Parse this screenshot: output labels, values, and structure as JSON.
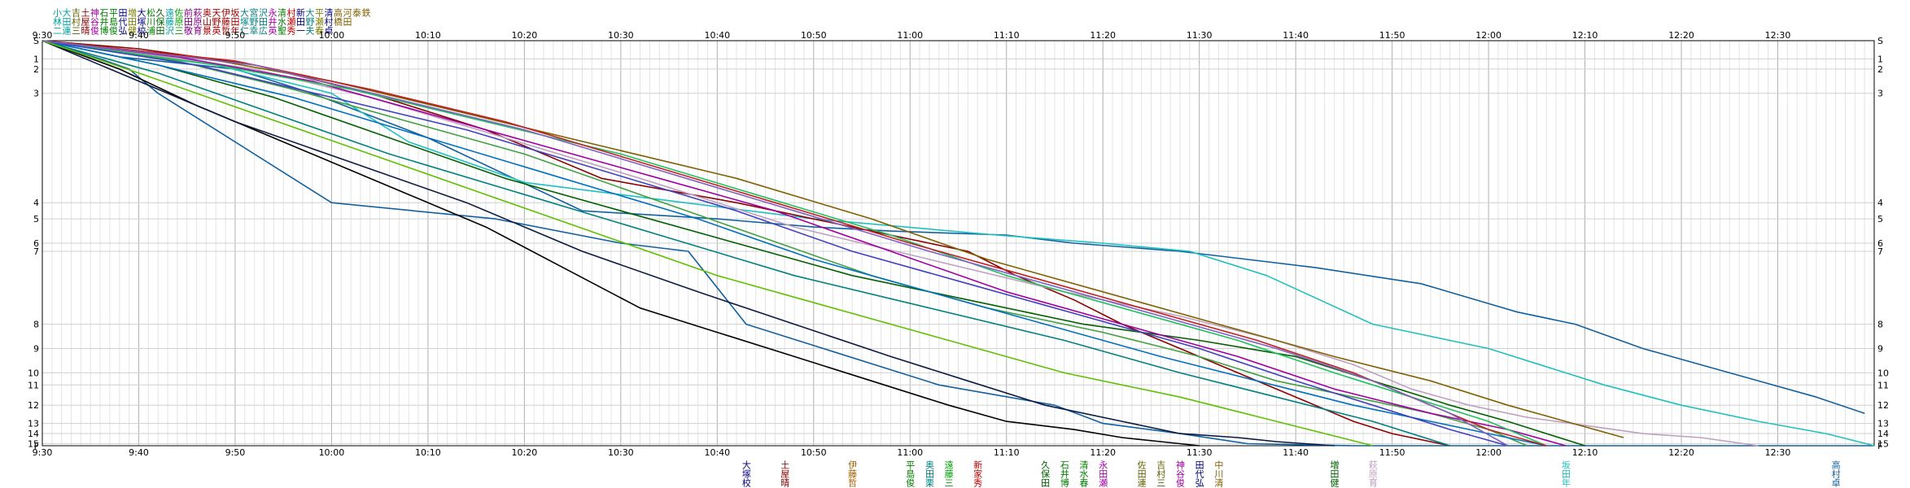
{
  "chart_data": {
    "type": "line",
    "title": "",
    "xlabel": "",
    "ylabel": "",
    "grid": true,
    "legend": "top-left",
    "x_ticks": [
      "9:30",
      "9:40",
      "9:50",
      "10:00",
      "10:10",
      "10:20",
      "10:30",
      "10:40",
      "10:50",
      "11:00",
      "11:10",
      "11:20",
      "11:30",
      "11:40",
      "11:50",
      "12:00",
      "12:10",
      "12:20",
      "12:30"
    ],
    "xlim_min": [
      0,
      190
    ],
    "y_ticks": [
      "S",
      "1",
      "2",
      "3",
      "4",
      "5",
      "6",
      "7",
      "8",
      "9",
      "10",
      "11",
      "12",
      "13",
      "14",
      "15",
      "F"
    ],
    "ylim": [
      0,
      100
    ],
    "y_tick_values": [
      0,
      4.5,
      7,
      13,
      40,
      44,
      50,
      52,
      70,
      76,
      82,
      85,
      90,
      94.5,
      97,
      99.5,
      100
    ],
    "legend_entries": [
      {
        "name": "小林二",
        "color": "#00a0a0"
      },
      {
        "name": "大田連",
        "color": "#00a0a0"
      },
      {
        "name": "吉村三",
        "color": "#606000"
      },
      {
        "name": "土屋晴",
        "color": "#800000"
      },
      {
        "name": "神谷俊",
        "color": "#a000a0"
      },
      {
        "name": "石井博",
        "color": "#008000"
      },
      {
        "name": "平島俊",
        "color": "#008000"
      },
      {
        "name": "田代弘",
        "color": "#000080"
      },
      {
        "name": "増田健",
        "color": "#808000"
      },
      {
        "name": "大塚校",
        "color": "#000080"
      },
      {
        "name": "松川浦",
        "color": "#008000"
      },
      {
        "name": "久保田",
        "color": "#006000"
      },
      {
        "name": "遠藤沢",
        "color": "#00a0a0"
      },
      {
        "name": "佐原三",
        "color": "#00a000"
      },
      {
        "name": "前田敬",
        "color": "#800080"
      },
      {
        "name": "萩原育",
        "color": "#800080"
      },
      {
        "name": "奥山景",
        "color": "#a00000"
      },
      {
        "name": "天野英",
        "color": "#a00000"
      },
      {
        "name": "伊藤哲",
        "color": "#a00000"
      },
      {
        "name": "坂田年",
        "color": "#a00000"
      },
      {
        "name": "大塚仁",
        "color": "#008080"
      },
      {
        "name": "宮野幸",
        "color": "#008080"
      },
      {
        "name": "沢田広",
        "color": "#008080"
      },
      {
        "name": "永井英",
        "color": "#a000a0"
      },
      {
        "name": "清水聖",
        "color": "#008000"
      },
      {
        "name": "村瀬秀",
        "color": "#c00000"
      },
      {
        "name": "新田一",
        "color": "#000080"
      },
      {
        "name": "大野夫",
        "color": "#008080"
      },
      {
        "name": "平瀬春",
        "color": "#808000"
      },
      {
        "name": "清村卓",
        "color": "#000080"
      },
      {
        "name": "高橋",
        "color": "#806000"
      },
      {
        "name": "河田",
        "color": "#806000"
      },
      {
        "name": "泰",
        "color": "#806000"
      },
      {
        "name": "鉄",
        "color": "#806000"
      }
    ],
    "series": [
      {
        "color": "#1060a0",
        "x": [
          0,
          6,
          9,
          12,
          30,
          47,
          60,
          67,
          73,
          81,
          89,
          93,
          105,
          110,
          118,
          125,
          136,
          150,
          163,
          175,
          180,
          186,
          190
        ],
        "y": [
          0,
          4.5,
          7,
          13,
          40,
          44,
          50,
          52,
          70,
          76,
          82,
          85,
          90,
          94.5,
          97,
          99.5,
          100,
          100,
          100,
          100,
          100,
          100,
          100
        ]
      },
      {
        "color": "#1060a0",
        "x": [
          0,
          8,
          20,
          28,
          40,
          56,
          70,
          80,
          88,
          100,
          107,
          118,
          132,
          143,
          153,
          159,
          166,
          175,
          184,
          189
        ],
        "y": [
          0,
          4,
          7,
          13,
          24,
          42,
          44,
          46,
          47,
          48,
          50,
          52,
          56,
          60,
          67,
          70,
          76,
          82,
          88,
          92
        ]
      },
      {
        "color": "#20c0c0",
        "x": [
          0,
          8,
          18,
          30,
          38,
          50,
          70,
          80,
          99,
          110,
          119,
          127,
          138,
          150,
          162,
          170,
          178,
          185,
          190
        ],
        "y": [
          0,
          3,
          6,
          13,
          25,
          35,
          41,
          44,
          48,
          50,
          52,
          58,
          70,
          76,
          85,
          90,
          94,
          97,
          100
        ]
      },
      {
        "color": "#8b0000",
        "x": [
          0,
          10,
          22,
          34,
          46,
          58,
          72,
          86,
          96,
          101,
          107,
          112,
          118,
          124,
          130,
          136,
          140,
          146
        ],
        "y": [
          0,
          2,
          6,
          13,
          22,
          34,
          40,
          47,
          52,
          58,
          64,
          70,
          76,
          82,
          88,
          94,
          97,
          100
        ]
      },
      {
        "color": "#c0a0c0",
        "x": [
          0,
          10,
          22,
          34,
          48,
          62,
          78,
          92,
          106,
          118,
          128,
          136,
          142,
          148,
          154,
          160,
          166,
          172,
          178
        ],
        "y": [
          0,
          3,
          7,
          14,
          24,
          34,
          46,
          54,
          62,
          68,
          74,
          80,
          86,
          90,
          93,
          95,
          97,
          98,
          100
        ]
      },
      {
        "color": "#000000",
        "x": [
          0,
          8,
          16,
          24,
          30,
          38,
          46,
          54,
          62,
          70,
          78,
          86,
          94,
          100,
          107,
          112,
          116,
          120
        ],
        "y": [
          0,
          7,
          16,
          24,
          30,
          38,
          46,
          56,
          66,
          72,
          78,
          84,
          90,
          94,
          96,
          98,
          99,
          100
        ]
      },
      {
        "color": "#0a1a40",
        "x": [
          0,
          10,
          20,
          32,
          44,
          56,
          68,
          78,
          88,
          96,
          104,
          112,
          118,
          124,
          128,
          134
        ],
        "y": [
          0,
          10,
          20,
          30,
          40,
          52,
          62,
          70,
          78,
          84,
          90,
          94,
          97,
          98,
          99,
          100
        ]
      },
      {
        "color": "#006000",
        "x": [
          0,
          12,
          24,
          36,
          48,
          60,
          72,
          84,
          96,
          108,
          120,
          130,
          138,
          146,
          152,
          156,
          160
        ],
        "y": [
          0,
          6,
          14,
          24,
          34,
          42,
          50,
          58,
          64,
          70,
          74,
          78,
          84,
          90,
          94,
          97,
          100
        ]
      },
      {
        "color": "#40a040",
        "x": [
          0,
          14,
          26,
          38,
          50,
          62,
          74,
          86,
          98,
          110,
          120,
          128,
          136,
          144,
          150,
          154
        ],
        "y": [
          0,
          5,
          12,
          20,
          28,
          38,
          48,
          58,
          66,
          72,
          78,
          84,
          88,
          92,
          96,
          100
        ]
      },
      {
        "color": "#a000a0",
        "x": [
          0,
          14,
          28,
          40,
          52,
          64,
          76,
          88,
          100,
          112,
          124,
          134,
          144,
          152,
          158
        ],
        "y": [
          0,
          4,
          10,
          18,
          26,
          34,
          42,
          52,
          62,
          70,
          78,
          86,
          92,
          96,
          100
        ]
      },
      {
        "color": "#806000",
        "x": [
          0,
          16,
          30,
          44,
          58,
          72,
          86,
          98,
          110,
          122,
          134,
          144,
          152,
          158,
          164
        ],
        "y": [
          0,
          4,
          10,
          18,
          26,
          34,
          44,
          54,
          62,
          70,
          78,
          84,
          90,
          94,
          98
        ]
      },
      {
        "color": "#0070c0",
        "x": [
          0,
          12,
          26,
          40,
          54,
          68,
          80,
          92,
          104,
          116,
          126,
          136,
          144,
          150,
          156
        ],
        "y": [
          0,
          6,
          14,
          24,
          34,
          44,
          54,
          62,
          70,
          78,
          84,
          90,
          94,
          97,
          100
        ]
      },
      {
        "color": "#20c060",
        "x": [
          0,
          18,
          32,
          46,
          60,
          74,
          88,
          100,
          112,
          124,
          134,
          142,
          150,
          156
        ],
        "y": [
          0,
          6,
          12,
          20,
          28,
          38,
          48,
          58,
          66,
          74,
          82,
          88,
          94,
          100
        ]
      },
      {
        "color": "#4040c0",
        "x": [
          0,
          16,
          30,
          44,
          58,
          72,
          84,
          96,
          108,
          120,
          130,
          138,
          146,
          152
        ],
        "y": [
          0,
          6,
          14,
          22,
          32,
          42,
          52,
          60,
          68,
          76,
          84,
          90,
          96,
          100
        ]
      },
      {
        "color": "#c02020",
        "x": [
          0,
          20,
          34,
          48,
          62,
          76,
          90,
          102,
          114,
          126,
          136,
          144,
          150,
          156
        ],
        "y": [
          0,
          5,
          12,
          20,
          30,
          40,
          50,
          58,
          66,
          74,
          82,
          90,
          96,
          100
        ]
      },
      {
        "color": "#008080",
        "x": [
          0,
          12,
          24,
          36,
          50,
          64,
          78,
          92,
          106,
          118,
          128,
          138,
          146
        ],
        "y": [
          0,
          8,
          18,
          28,
          38,
          48,
          58,
          66,
          74,
          82,
          88,
          94,
          100
        ]
      },
      {
        "color": "#60c000",
        "x": [
          0,
          10,
          22,
          34,
          46,
          58,
          70,
          82,
          94,
          106,
          118,
          128,
          138
        ],
        "y": [
          0,
          8,
          18,
          28,
          38,
          48,
          58,
          66,
          74,
          82,
          88,
          94,
          100
        ]
      },
      {
        "color": "#8060c0",
        "x": [
          0,
          22,
          36,
          50,
          64,
          78,
          92,
          104,
          116,
          128,
          138,
          146,
          152
        ],
        "y": [
          0,
          6,
          14,
          22,
          32,
          42,
          52,
          60,
          68,
          76,
          84,
          92,
          100
        ]
      }
    ],
    "right_end_labels": [
      {
        "x": 73,
        "text": "大塚校",
        "color": "#000080"
      },
      {
        "x": 77,
        "text": "土屋晴",
        "color": "#800000"
      },
      {
        "x": 84,
        "text": "伊藤哲",
        "color": "#a06000"
      },
      {
        "x": 90,
        "text": "平島俊",
        "color": "#008000"
      },
      {
        "x": 92,
        "text": "奥田栗",
        "color": "#008080"
      },
      {
        "x": 94,
        "text": "遠藤三",
        "color": "#00a000"
      },
      {
        "x": 97,
        "text": "新家秀",
        "color": "#c00000"
      },
      {
        "x": 104,
        "text": "久保田",
        "color": "#006000"
      },
      {
        "x": 106,
        "text": "石井博",
        "color": "#008000"
      },
      {
        "x": 108,
        "text": "清水春",
        "color": "#008000"
      },
      {
        "x": 110,
        "text": "永田瀬",
        "color": "#a000a0"
      },
      {
        "x": 114,
        "text": "佐田連",
        "color": "#606000"
      },
      {
        "x": 116,
        "text": "吉村三",
        "color": "#606000"
      },
      {
        "x": 118,
        "text": "神谷俊",
        "color": "#a000a0"
      },
      {
        "x": 120,
        "text": "田代弘",
        "color": "#000080"
      },
      {
        "x": 122,
        "text": "中川清",
        "color": "#806000"
      },
      {
        "x": 134,
        "text": "増田健",
        "color": "#006000"
      },
      {
        "x": 138,
        "text": "萩原育",
        "color": "#c0a0c0"
      },
      {
        "x": 158,
        "text": "坂田年",
        "color": "#20c0c0"
      },
      {
        "x": 186,
        "text": "高村卓",
        "color": "#1060a0"
      }
    ]
  }
}
